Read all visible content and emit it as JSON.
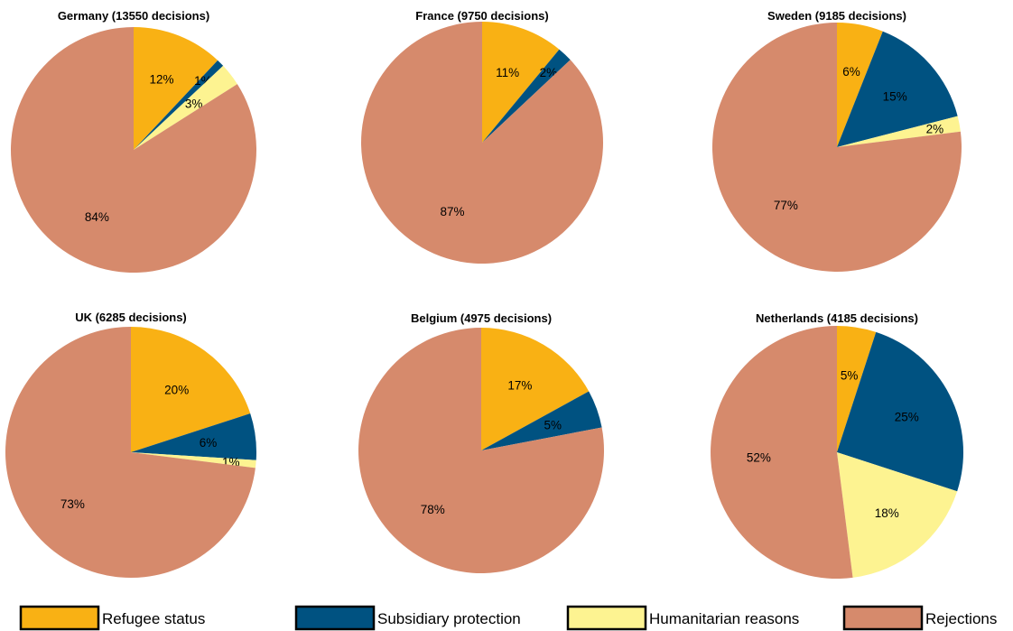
{
  "chart_data": {
    "type": "pie",
    "legend": {
      "position": "bottom",
      "entries": [
        {
          "label": "Refugee status",
          "color": "#F9B114"
        },
        {
          "label": "Subsidiary protection",
          "color": "#005281"
        },
        {
          "label": "Humanitarian reasons",
          "color": "#FDF391"
        },
        {
          "label": "Rejections",
          "color": "#D68A6C"
        }
      ]
    },
    "pies": [
      {
        "title": "Germany (13550 decisions)",
        "values": [
          12,
          1,
          3,
          84
        ],
        "labels": [
          "12%",
          "1%",
          "3%",
          "84%"
        ]
      },
      {
        "title": "France (9750 decisions)",
        "values": [
          11,
          2,
          0,
          87
        ],
        "labels": [
          "11%",
          "2%",
          "",
          "87%"
        ]
      },
      {
        "title": "Sweden (9185 decisions)",
        "values": [
          6,
          15,
          2,
          77
        ],
        "labels": [
          "6%",
          "15%",
          "2%",
          "77%"
        ]
      },
      {
        "title": "UK (6285 decisions)",
        "values": [
          20,
          6,
          1,
          73
        ],
        "labels": [
          "20%",
          "6%",
          "1%",
          "73%"
        ]
      },
      {
        "title": "Belgium (4975 decisions)",
        "values": [
          17,
          5,
          0,
          78
        ],
        "labels": [
          "17%",
          "5%",
          "",
          "78%"
        ]
      },
      {
        "title": "Netherlands (4185 decisions)",
        "values": [
          5,
          25,
          18,
          52
        ],
        "labels": [
          "5%",
          "25%",
          "18%",
          "52%"
        ]
      }
    ]
  }
}
